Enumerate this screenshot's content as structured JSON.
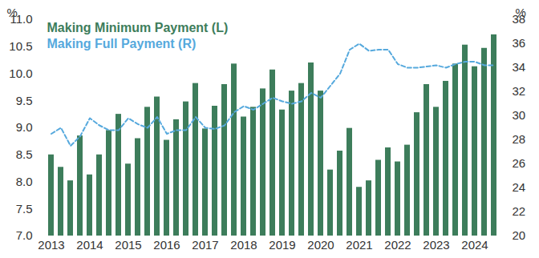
{
  "chart_data": {
    "type": "bar",
    "categories": [
      "2013",
      null,
      null,
      null,
      "2014",
      null,
      null,
      null,
      "2015",
      null,
      null,
      null,
      "2016",
      null,
      null,
      null,
      "2017",
      null,
      null,
      null,
      "2018",
      null,
      null,
      null,
      "2019",
      null,
      null,
      null,
      "2020",
      null,
      null,
      null,
      "2021",
      null,
      null,
      null,
      "2022",
      null,
      null,
      null,
      "2023",
      null,
      null,
      null,
      "2024",
      null,
      null
    ],
    "series": [
      {
        "name": "Making Minimum Payment (L)",
        "type": "bar",
        "color": "#3d7d5b",
        "values": [
          8.5,
          8.27,
          8.02,
          8.85,
          8.13,
          8.5,
          8.95,
          9.25,
          8.33,
          8.8,
          9.38,
          9.57,
          8.77,
          9.15,
          9.48,
          9.82,
          8.98,
          9.4,
          9.8,
          10.18,
          9.2,
          9.38,
          9.72,
          10.07,
          9.33,
          9.68,
          9.82,
          10.2,
          9.68,
          8.22,
          8.57,
          8.99,
          7.9,
          8.02,
          8.4,
          8.63,
          8.37,
          8.68,
          9.28,
          9.8,
          9.38,
          9.86,
          10.18,
          10.53,
          10.13,
          10.47,
          10.72
        ]
      },
      {
        "name": "Making Full Payment (R)",
        "type": "line",
        "line_style": "dashed",
        "color": "#56a9dd",
        "axis": "y2",
        "values": [
          28.5,
          29.0,
          27.5,
          28.3,
          29.8,
          29.2,
          28.8,
          28.8,
          29.8,
          29.3,
          29.0,
          29.9,
          28.5,
          28.8,
          28.8,
          29.9,
          29.0,
          28.9,
          29.2,
          30.3,
          30.8,
          30.5,
          31.0,
          31.5,
          31.2,
          31.0,
          31.2,
          31.9,
          31.5,
          32.5,
          33.5,
          35.5,
          36.0,
          35.4,
          35.5,
          35.5,
          34.3,
          34.0,
          34.0,
          34.1,
          34.2,
          34.0,
          34.3,
          34.5,
          34.5,
          34.2,
          34.2
        ]
      }
    ],
    "y_label": "%",
    "y2_label": "%",
    "ylim": [
      7,
      11
    ],
    "yticks": [
      {
        "value": 7,
        "label": "7.0"
      },
      {
        "value": 7.5,
        "label": "7.5"
      },
      {
        "value": 8,
        "label": "8.0"
      },
      {
        "value": 8.5,
        "label": "8.5"
      },
      {
        "value": 9,
        "label": "9.0"
      },
      {
        "value": 9.5,
        "label": "9.5"
      },
      {
        "value": 10,
        "label": "10.0"
      },
      {
        "value": 10.5,
        "label": "10.5"
      },
      {
        "value": 11,
        "label": "11.0"
      }
    ],
    "y2lim": [
      20,
      38
    ],
    "y2ticks": [
      20,
      22,
      24,
      26,
      28,
      30,
      32,
      34,
      36,
      38
    ],
    "legend": "top-left",
    "grid": false
  }
}
